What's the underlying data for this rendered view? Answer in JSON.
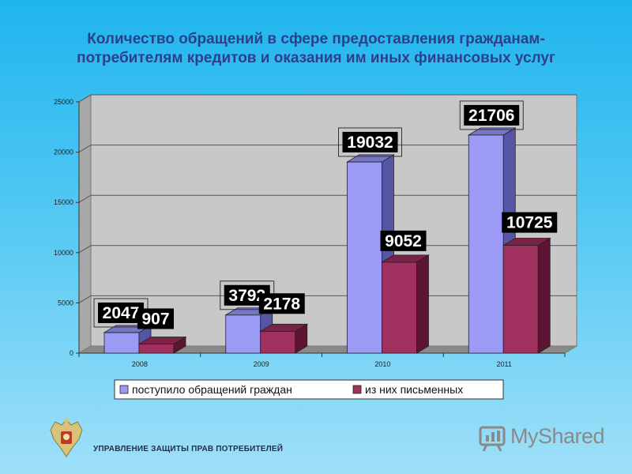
{
  "title_line1": "Количество обращений в сфере предоставления гражданам-",
  "title_line2": "потребителям кредитов и оказания им иных финансовых услуг",
  "footer": "УПРАВЛЕНИЕ ЗАЩИТЫ ПРАВ ПОТРЕБИТЕЛЕЙ",
  "watermark": "MyShared",
  "colors": {
    "series1_front": "#9b9bf5",
    "series1_side": "#5656a4",
    "series1_top": "#7676c8",
    "series2_front": "#a0305e",
    "series2_side": "#5e1533",
    "series2_top": "#7a2247",
    "plot_bg": "#c8c8c8",
    "plot_wall": "#a8a8a8",
    "floor": "#8a8a8a"
  },
  "chart_data": {
    "type": "bar",
    "categories": [
      "2008",
      "2009",
      "2010",
      "2011"
    ],
    "series": [
      {
        "name": "поступило обращений граждан",
        "values": [
          2047,
          3792,
          19032,
          21706
        ]
      },
      {
        "name": "из них письменных",
        "values": [
          907,
          2178,
          9052,
          10725
        ]
      }
    ],
    "data_labels": [
      [
        "2047",
        "3792",
        "19032",
        "21706"
      ],
      [
        "907",
        "2178",
        "9052",
        "10725"
      ]
    ],
    "y_ticks": [
      "0",
      "5000",
      "10000",
      "15000",
      "20000",
      "25000"
    ],
    "ylim": [
      0,
      25000
    ],
    "grid": true,
    "legend_position": "bottom",
    "xlabel": "",
    "ylabel": ""
  }
}
